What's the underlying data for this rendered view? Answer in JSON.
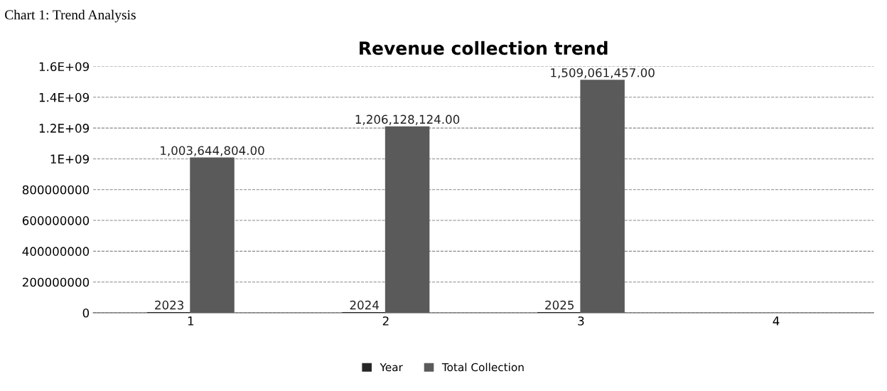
{
  "chart_data": {
    "type": "bar",
    "title": "Revenue collection trend",
    "annotations": [
      "Chart 1: Trend Analysis"
    ],
    "categories": [
      "1",
      "2",
      "3",
      "4"
    ],
    "series": [
      {
        "name": "Year",
        "color": "#262626",
        "values": [
          2023,
          2024,
          2025,
          null
        ],
        "value_labels": [
          "2023",
          "2024",
          "2025",
          null
        ]
      },
      {
        "name": "Total Collection",
        "color": "#5a5a5a",
        "values": [
          1003644804.0,
          1206128124.0,
          1509061457.0,
          null
        ],
        "value_labels": [
          "1,003,644,804.00",
          "1,206,128,124.00",
          "1,509,061,457.00",
          null
        ]
      }
    ],
    "ylim": [
      0,
      1600000000
    ],
    "yticks": [
      0,
      200000000,
      400000000,
      600000000,
      800000000,
      {
        "value": 1000000000,
        "label": "1E+09"
      },
      {
        "value": 1200000000,
        "label": "1.2E+09"
      },
      {
        "value": 1400000000,
        "label": "1.4E+09"
      },
      {
        "value": 1600000000,
        "label": "1.6E+09"
      }
    ],
    "grid": "y",
    "legend": "bottom"
  }
}
